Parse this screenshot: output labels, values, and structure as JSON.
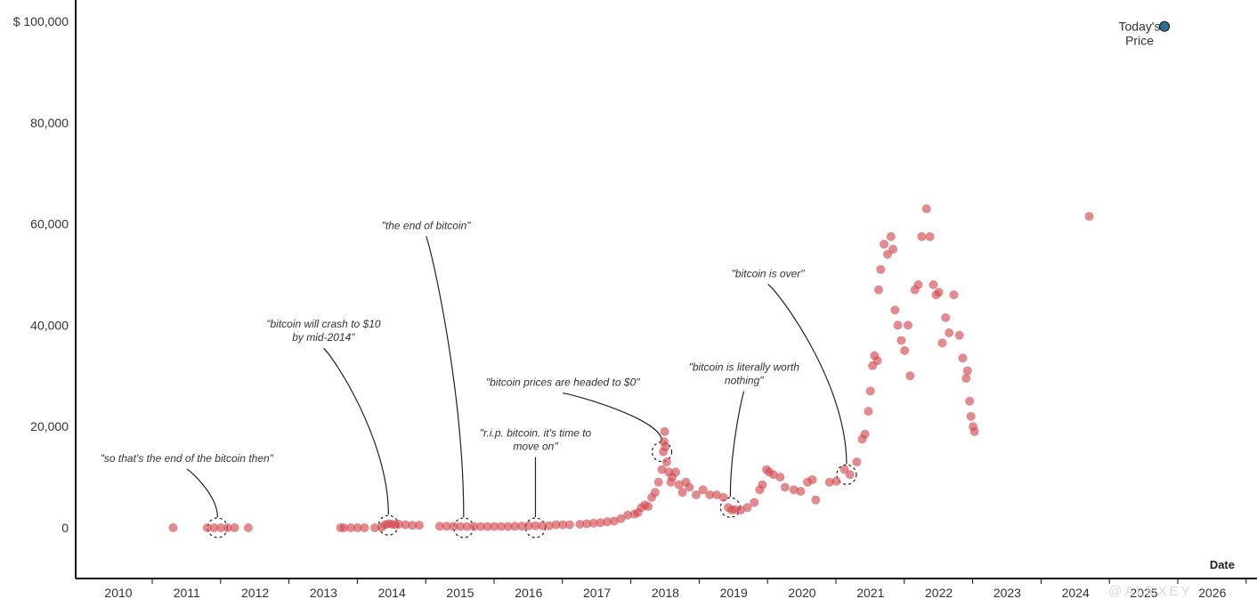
{
  "chart_data": {
    "type": "scatter",
    "xlabel": "Date",
    "ylabel": "",
    "x_ticks": [
      "2010",
      "2011",
      "2012",
      "2013",
      "2014",
      "2015",
      "2016",
      "2017",
      "2018",
      "2019",
      "2020",
      "2021",
      "2022",
      "2023",
      "2024",
      "2025",
      "2026"
    ],
    "y_ticks": [
      "0",
      "20,000",
      "40,000",
      "60,000",
      "80,000",
      "$ 100,000"
    ],
    "y_tick_values": [
      0,
      20000,
      40000,
      60000,
      80000,
      100000
    ],
    "xlim": [
      2009.4,
      2026.7
    ],
    "ylim": [
      -10000,
      105000
    ],
    "point_color": "#d24b50",
    "highlight_color": "#2a6f8f",
    "points": [
      [
        2010.8,
        0
      ],
      [
        2011.3,
        0
      ],
      [
        2011.4,
        0
      ],
      [
        2011.5,
        0
      ],
      [
        2011.6,
        0
      ],
      [
        2011.7,
        0
      ],
      [
        2011.9,
        0
      ],
      [
        2013.25,
        0
      ],
      [
        2013.3,
        0
      ],
      [
        2013.4,
        0
      ],
      [
        2013.5,
        0
      ],
      [
        2013.6,
        0
      ],
      [
        2013.75,
        0
      ],
      [
        2013.85,
        100
      ],
      [
        2013.9,
        600
      ],
      [
        2013.95,
        800
      ],
      [
        2014.0,
        700
      ],
      [
        2014.05,
        600
      ],
      [
        2014.1,
        700
      ],
      [
        2014.2,
        600
      ],
      [
        2014.3,
        500
      ],
      [
        2014.4,
        500
      ],
      [
        2014.7,
        300
      ],
      [
        2014.8,
        300
      ],
      [
        2014.9,
        300
      ],
      [
        2015.0,
        250
      ],
      [
        2015.1,
        250
      ],
      [
        2015.2,
        250
      ],
      [
        2015.3,
        250
      ],
      [
        2015.4,
        250
      ],
      [
        2015.5,
        250
      ],
      [
        2015.6,
        250
      ],
      [
        2015.7,
        250
      ],
      [
        2015.8,
        300
      ],
      [
        2015.9,
        300
      ],
      [
        2016.0,
        400
      ],
      [
        2016.1,
        400
      ],
      [
        2016.2,
        400
      ],
      [
        2016.3,
        400
      ],
      [
        2016.4,
        600
      ],
      [
        2016.5,
        600
      ],
      [
        2016.6,
        600
      ],
      [
        2016.75,
        700
      ],
      [
        2016.85,
        800
      ],
      [
        2016.95,
        900
      ],
      [
        2017.05,
        1000
      ],
      [
        2017.15,
        1200
      ],
      [
        2017.25,
        1300
      ],
      [
        2017.35,
        1800
      ],
      [
        2017.45,
        2500
      ],
      [
        2017.55,
        2700
      ],
      [
        2017.6,
        3000
      ],
      [
        2017.65,
        4000
      ],
      [
        2017.7,
        4500
      ],
      [
        2017.75,
        4200
      ],
      [
        2017.8,
        6000
      ],
      [
        2017.85,
        7000
      ],
      [
        2017.9,
        9000
      ],
      [
        2017.95,
        11500
      ],
      [
        2017.97,
        15000
      ],
      [
        2017.98,
        17000
      ],
      [
        2017.99,
        19000
      ],
      [
        2018.0,
        16000
      ],
      [
        2018.02,
        13000
      ],
      [
        2018.05,
        11000
      ],
      [
        2018.08,
        9000
      ],
      [
        2018.1,
        10000
      ],
      [
        2018.15,
        11000
      ],
      [
        2018.2,
        8500
      ],
      [
        2018.25,
        7000
      ],
      [
        2018.3,
        9000
      ],
      [
        2018.35,
        8000
      ],
      [
        2018.45,
        6500
      ],
      [
        2018.55,
        7500
      ],
      [
        2018.65,
        6500
      ],
      [
        2018.75,
        6500
      ],
      [
        2018.85,
        6000
      ],
      [
        2018.92,
        4000
      ],
      [
        2018.97,
        3500
      ],
      [
        2019.02,
        3600
      ],
      [
        2019.1,
        3500
      ],
      [
        2019.2,
        4000
      ],
      [
        2019.3,
        5000
      ],
      [
        2019.38,
        7500
      ],
      [
        2019.42,
        8500
      ],
      [
        2019.48,
        11500
      ],
      [
        2019.52,
        11000
      ],
      [
        2019.58,
        10500
      ],
      [
        2019.68,
        10000
      ],
      [
        2019.75,
        8000
      ],
      [
        2019.88,
        7500
      ],
      [
        2019.98,
        7200
      ],
      [
        2020.08,
        9000
      ],
      [
        2020.15,
        9500
      ],
      [
        2020.2,
        5500
      ],
      [
        2020.4,
        9000
      ],
      [
        2020.5,
        9200
      ],
      [
        2020.62,
        11500
      ],
      [
        2020.7,
        10500
      ],
      [
        2020.8,
        13000
      ],
      [
        2020.88,
        17500
      ],
      [
        2020.92,
        18500
      ],
      [
        2020.97,
        23000
      ],
      [
        2021.0,
        27000
      ],
      [
        2021.03,
        32000
      ],
      [
        2021.06,
        34000
      ],
      [
        2021.1,
        33000
      ],
      [
        2021.12,
        47000
      ],
      [
        2021.15,
        51000
      ],
      [
        2021.2,
        56000
      ],
      [
        2021.25,
        54000
      ],
      [
        2021.3,
        57500
      ],
      [
        2021.33,
        55000
      ],
      [
        2021.36,
        43000
      ],
      [
        2021.4,
        40000
      ],
      [
        2021.45,
        37000
      ],
      [
        2021.5,
        35000
      ],
      [
        2021.55,
        40000
      ],
      [
        2021.58,
        30000
      ],
      [
        2021.65,
        47000
      ],
      [
        2021.7,
        48000
      ],
      [
        2021.75,
        57500
      ],
      [
        2021.82,
        63000
      ],
      [
        2021.87,
        57500
      ],
      [
        2021.92,
        48000
      ],
      [
        2021.96,
        46000
      ],
      [
        2022.0,
        46500
      ],
      [
        2022.05,
        36500
      ],
      [
        2022.1,
        41500
      ],
      [
        2022.15,
        38500
      ],
      [
        2022.22,
        46000
      ],
      [
        2022.3,
        38000
      ],
      [
        2022.35,
        33500
      ],
      [
        2022.4,
        29500
      ],
      [
        2022.42,
        31000
      ],
      [
        2022.45,
        25000
      ],
      [
        2022.47,
        22000
      ],
      [
        2022.5,
        20000
      ],
      [
        2022.52,
        19000
      ],
      [
        2024.2,
        61500
      ]
    ],
    "today_point": [
      2025.3,
      99000
    ],
    "today_label": [
      "Today's",
      "Price"
    ],
    "annotations": [
      {
        "text": [
          "\"so that's the end of the bitcoin then\""
        ],
        "target": [
          2011.45,
          0
        ],
        "label": [
          2011.0,
          13000
        ]
      },
      {
        "text": [
          "\"bitcoin will crash to $10",
          "by mid-2014\""
        ],
        "target": [
          2013.95,
          500
        ],
        "label": [
          2013.0,
          39500
        ]
      },
      {
        "text": [
          "\"the end of bitcoin\""
        ],
        "target": [
          2015.05,
          0
        ],
        "label": [
          2014.5,
          59000
        ]
      },
      {
        "text": [
          "\"bitcoin prices are headed to $0\""
        ],
        "target": [
          2017.95,
          15000
        ],
        "label": [
          2016.5,
          28000
        ]
      },
      {
        "text": [
          "\"r.i.p. bitcoin. it's time to",
          "move on\""
        ],
        "target": [
          2016.1,
          0
        ],
        "label": [
          2016.1,
          18000
        ]
      },
      {
        "text": [
          "\"bitcoin is literally worth",
          "nothing\""
        ],
        "target": [
          2018.95,
          4000
        ],
        "label": [
          2019.15,
          31000
        ]
      },
      {
        "text": [
          "\"bitcoin is over\""
        ],
        "target": [
          2020.65,
          10500
        ],
        "label": [
          2019.5,
          49500
        ]
      }
    ],
    "watermark": "@ALEXEY",
    "grid": false
  }
}
